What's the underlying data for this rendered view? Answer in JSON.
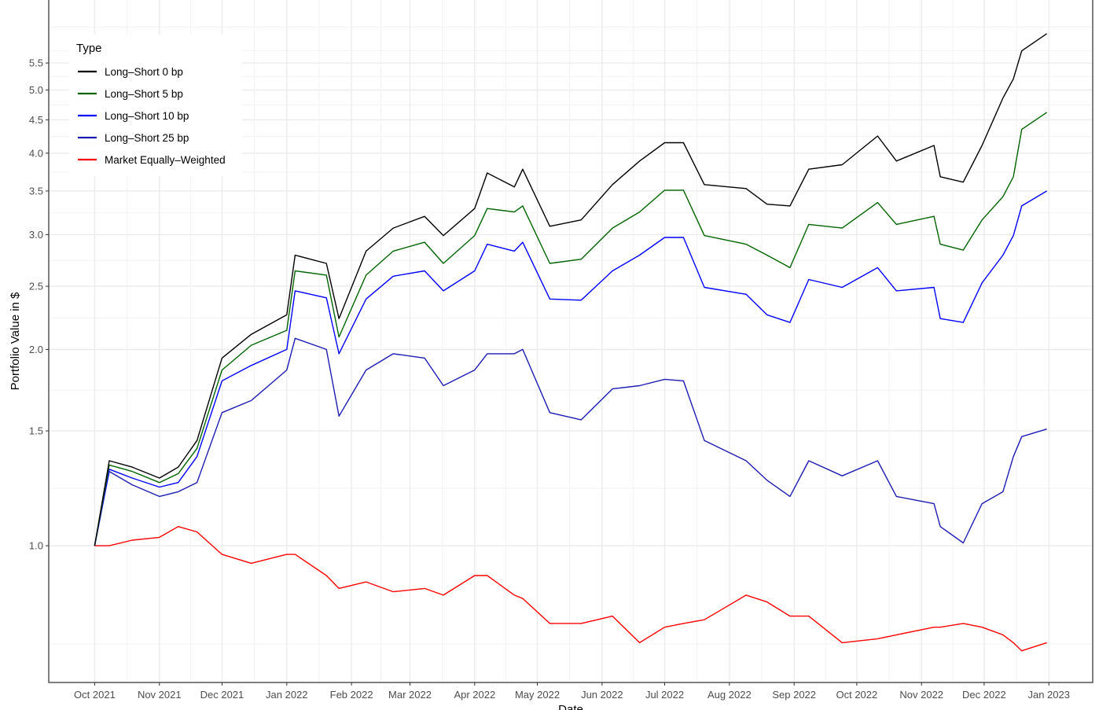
{
  "chart_data": {
    "type": "line",
    "title": "",
    "xlabel": "Date",
    "ylabel": "Portfolio Value in $",
    "y_scale": "log",
    "ylim": [
      0.617,
      6.87
    ],
    "xlim": [
      "2021-09-09",
      "2023-01-22"
    ],
    "grid": true,
    "legend": {
      "title": "Type",
      "placement": "top-left"
    },
    "y_ticks": [
      "1.0",
      "1.5",
      "2.0",
      "2.5",
      "3.0",
      "3.5",
      "4.0",
      "4.5",
      "5.0",
      "5.5"
    ],
    "x_ticks": [
      {
        "date": "2021-10-01",
        "label": "Oct 2021"
      },
      {
        "date": "2021-11-01",
        "label": "Nov 2021"
      },
      {
        "date": "2021-12-01",
        "label": "Dec 2021"
      },
      {
        "date": "2022-01-01",
        "label": "Jan 2022"
      },
      {
        "date": "2022-02-01",
        "label": "Feb 2022"
      },
      {
        "date": "2022-03-01",
        "label": "Mar 2022"
      },
      {
        "date": "2022-04-01",
        "label": "Apr 2022"
      },
      {
        "date": "2022-05-01",
        "label": "May 2022"
      },
      {
        "date": "2022-06-01",
        "label": "Jun 2022"
      },
      {
        "date": "2022-07-01",
        "label": "Jul 2022"
      },
      {
        "date": "2022-08-01",
        "label": "Aug 2022"
      },
      {
        "date": "2022-09-01",
        "label": "Sep 2022"
      },
      {
        "date": "2022-10-01",
        "label": "Oct 2022"
      },
      {
        "date": "2022-11-01",
        "label": "Nov 2022"
      },
      {
        "date": "2022-12-01",
        "label": "Dec 2022"
      },
      {
        "date": "2023-01-01",
        "label": "Jan 2023"
      }
    ],
    "x": [
      "2021-10-01",
      "2021-10-08",
      "2021-10-19",
      "2021-11-01",
      "2021-11-10",
      "2021-11-19",
      "2021-12-01",
      "2021-12-15",
      "2022-01-01",
      "2022-01-05",
      "2022-01-20",
      "2022-01-26",
      "2022-02-08",
      "2022-02-21",
      "2022-03-08",
      "2022-03-17",
      "2022-04-01",
      "2022-04-07",
      "2022-04-20",
      "2022-04-24",
      "2022-05-07",
      "2022-05-22",
      "2022-06-06",
      "2022-06-19",
      "2022-07-01",
      "2022-07-10",
      "2022-07-20",
      "2022-08-09",
      "2022-08-19",
      "2022-08-30",
      "2022-09-08",
      "2022-09-24",
      "2022-10-11",
      "2022-10-20",
      "2022-11-07",
      "2022-11-10",
      "2022-11-21",
      "2022-11-30",
      "2022-12-10",
      "2022-12-15",
      "2022-12-19",
      "2022-12-31"
    ],
    "series": [
      {
        "name": "Long–Short 0 bp",
        "color": "#000000",
        "values": [
          1.0,
          1.35,
          1.32,
          1.27,
          1.32,
          1.45,
          1.94,
          2.11,
          2.26,
          2.79,
          2.71,
          2.23,
          2.83,
          3.07,
          3.2,
          2.99,
          3.29,
          3.73,
          3.55,
          3.78,
          3.09,
          3.16,
          3.58,
          3.89,
          4.15,
          4.15,
          3.58,
          3.53,
          3.34,
          3.32,
          3.78,
          3.84,
          4.25,
          3.89,
          4.11,
          3.68,
          3.61,
          4.11,
          4.86,
          5.2,
          5.74,
          6.1
        ]
      },
      {
        "name": "Long–Short 5 bp",
        "color": "#006400",
        "values": [
          1.0,
          1.33,
          1.3,
          1.25,
          1.29,
          1.41,
          1.86,
          2.03,
          2.14,
          2.64,
          2.6,
          2.09,
          2.6,
          2.83,
          2.92,
          2.71,
          2.99,
          3.29,
          3.25,
          3.32,
          2.71,
          2.75,
          3.07,
          3.25,
          3.51,
          3.51,
          2.99,
          2.9,
          2.79,
          2.67,
          3.11,
          3.07,
          3.36,
          3.11,
          3.2,
          2.9,
          2.84,
          3.16,
          3.43,
          3.68,
          4.35,
          4.62
        ]
      },
      {
        "name": "Long–Short 10 bp",
        "color": "#0000ff",
        "values": [
          1.0,
          1.31,
          1.27,
          1.23,
          1.25,
          1.37,
          1.79,
          1.89,
          2.0,
          2.46,
          2.4,
          1.97,
          2.39,
          2.59,
          2.64,
          2.46,
          2.64,
          2.9,
          2.83,
          2.92,
          2.39,
          2.38,
          2.64,
          2.79,
          2.97,
          2.97,
          2.49,
          2.43,
          2.26,
          2.2,
          2.56,
          2.49,
          2.67,
          2.46,
          2.49,
          2.23,
          2.2,
          2.53,
          2.79,
          2.99,
          3.32,
          3.5
        ]
      },
      {
        "name": "Long–Short 25 bp",
        "color": "#1c1cb4",
        "values": [
          1.0,
          1.3,
          1.24,
          1.19,
          1.21,
          1.25,
          1.6,
          1.67,
          1.86,
          2.08,
          2.0,
          1.58,
          1.86,
          1.97,
          1.94,
          1.76,
          1.86,
          1.97,
          1.97,
          2.0,
          1.6,
          1.56,
          1.74,
          1.76,
          1.8,
          1.79,
          1.45,
          1.35,
          1.26,
          1.19,
          1.35,
          1.28,
          1.35,
          1.19,
          1.16,
          1.07,
          1.01,
          1.16,
          1.21,
          1.37,
          1.47,
          1.51
        ]
      },
      {
        "name": "Market Equally–Weighted",
        "color": "#ff0000",
        "values": [
          1.0,
          1.0,
          1.02,
          1.03,
          1.07,
          1.05,
          0.97,
          0.94,
          0.97,
          0.97,
          0.9,
          0.86,
          0.88,
          0.85,
          0.86,
          0.84,
          0.9,
          0.9,
          0.84,
          0.83,
          0.76,
          0.76,
          0.78,
          0.71,
          0.75,
          0.76,
          0.77,
          0.84,
          0.82,
          0.78,
          0.78,
          0.71,
          0.72,
          0.73,
          0.75,
          0.75,
          0.76,
          0.75,
          0.73,
          0.71,
          0.69,
          0.71
        ]
      }
    ]
  }
}
